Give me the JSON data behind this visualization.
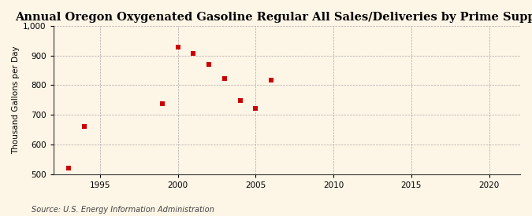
{
  "title": "Annual Oregon Oxygenated Gasoline Regular All Sales/Deliveries by Prime Supplier",
  "ylabel": "Thousand Gallons per Day",
  "source": "Source: U.S. Energy Information Administration",
  "outer_bg": "#f5e6c8",
  "inner_bg": "#fdf5e6",
  "x_values": [
    1993,
    1994,
    1999,
    2000,
    2001,
    2002,
    2003,
    2004,
    2005,
    2006
  ],
  "y_values": [
    520,
    660,
    738,
    928,
    908,
    870,
    822,
    748,
    722,
    818
  ],
  "marker_color": "#cc0000",
  "marker_size": 4,
  "xlim": [
    1992,
    2022
  ],
  "ylim": [
    500,
    1000
  ],
  "xticks": [
    1995,
    2000,
    2005,
    2010,
    2015,
    2020
  ],
  "yticks": [
    500,
    600,
    700,
    800,
    900,
    1000
  ],
  "ytick_labels": [
    "500",
    "600",
    "700",
    "800",
    "900",
    "1,000"
  ],
  "title_fontsize": 10.5,
  "ylabel_fontsize": 7.5,
  "source_fontsize": 7,
  "tick_fontsize": 7.5
}
